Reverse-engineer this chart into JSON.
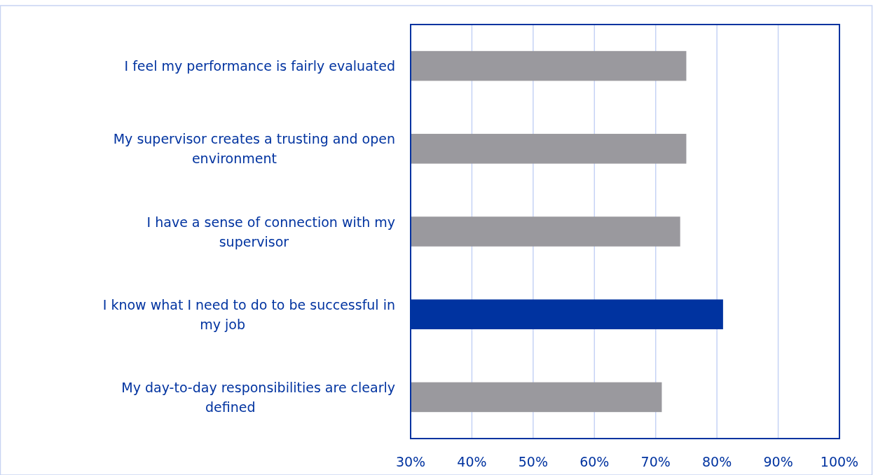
{
  "chart_data": {
    "type": "bar",
    "orientation": "horizontal",
    "categories": [
      "I feel my performance is fairly evaluated",
      "My supervisor creates a trusting and open environment",
      "I have a sense of connection with my supervisor",
      "I know what I need to do to be successful in my job",
      "My day-to-day responsibilities are clearly defined"
    ],
    "values": [
      75,
      75,
      74,
      81,
      71
    ],
    "colors": [
      "#9a999e",
      "#9a999e",
      "#9a999e",
      "#0033a0",
      "#9a999e"
    ],
    "xlim": [
      30,
      100
    ],
    "xticks": [
      {
        "value": 30,
        "label": "30%"
      },
      {
        "value": 40,
        "label": "40%"
      },
      {
        "value": 50,
        "label": "50%"
      },
      {
        "value": 60,
        "label": "60%"
      },
      {
        "value": 70,
        "label": "70%"
      },
      {
        "value": 80,
        "label": "80%"
      },
      {
        "value": 90,
        "label": "90%"
      },
      {
        "value": 100,
        "label": "100%"
      }
    ],
    "grid": "x"
  }
}
